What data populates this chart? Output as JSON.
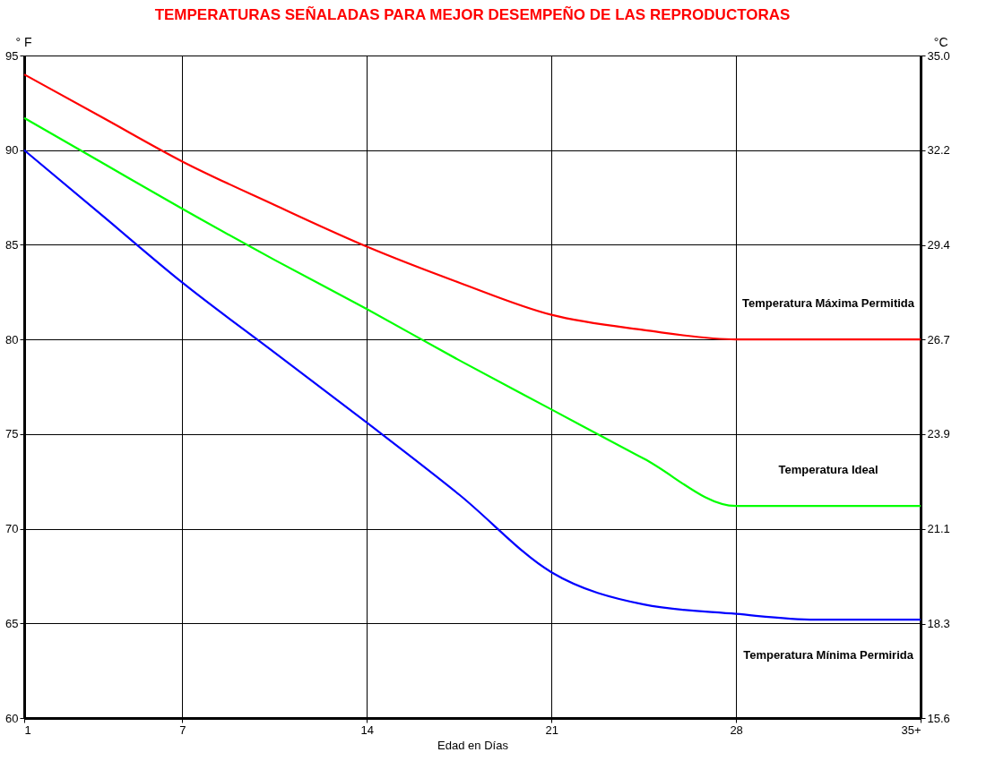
{
  "chart_data": {
    "type": "line",
    "title": "TEMPERATURAS SEÑALADAS PARA MEJOR DESEMPEÑO DE LAS REPRODUCTORAS",
    "xlabel": "Edad en Días",
    "ylabel": "° F",
    "y2label": "°C",
    "x": [
      1,
      4,
      7,
      10.5,
      14,
      17.5,
      21,
      24.5,
      28,
      31,
      35
    ],
    "series": [
      {
        "name": "Temperatura Máxima Permitida",
        "color": "#ff0000",
        "values": [
          94.0,
          91.7,
          89.4,
          87.1,
          84.9,
          83.0,
          81.3,
          80.5,
          80.0,
          80.0,
          80.0
        ]
      },
      {
        "name": "Temperatura Ideal",
        "color": "#00ff00",
        "values": [
          91.7,
          89.3,
          86.9,
          84.2,
          81.6,
          78.9,
          76.3,
          73.7,
          71.2,
          71.2,
          71.2
        ]
      },
      {
        "name": "Temperatura Mínima Permirida",
        "color": "#0000ff",
        "values": [
          90.0,
          86.5,
          83.0,
          79.3,
          75.6,
          71.8,
          67.7,
          66.0,
          65.5,
          65.2,
          65.2
        ]
      }
    ],
    "xlim": [
      1,
      35
    ],
    "xticks": [
      1,
      7,
      14,
      21,
      28,
      {
        "value": 35,
        "label": "35+"
      }
    ],
    "ylim": [
      60,
      95
    ],
    "yticks": [
      60,
      65,
      70,
      75,
      80,
      85,
      90,
      95
    ],
    "y2lim": [
      15.56,
      35
    ],
    "y2ticks": [
      {
        "value": 15.56,
        "label": "15.6"
      },
      {
        "value": 18.33,
        "label": "18.3"
      },
      {
        "value": 21.11,
        "label": "21.1"
      },
      {
        "value": 23.89,
        "label": "23.9"
      },
      {
        "value": 26.67,
        "label": "26.7"
      },
      {
        "value": 29.44,
        "label": "29.4"
      },
      {
        "value": 32.22,
        "label": "32.2"
      },
      {
        "value": 35,
        "label": "35.0"
      }
    ],
    "grid": true,
    "legend": false,
    "marker": "none",
    "line_style": "solid"
  }
}
